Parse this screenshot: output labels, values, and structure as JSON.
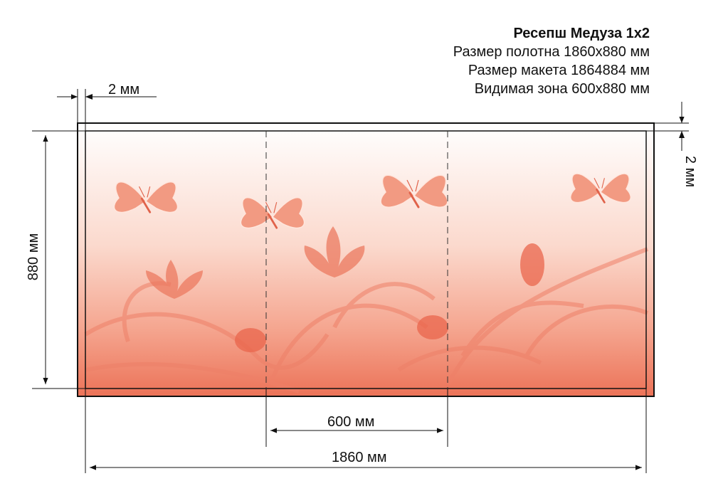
{
  "header": {
    "title": "Ресепш Медуза 1х2",
    "lines": [
      "Размер полотна 1860х880 мм",
      "Размер макета 1864884 мм",
      "Видимая зона 600х880 мм"
    ]
  },
  "dimensions": {
    "bleed_left": "2 мм",
    "bleed_top": "2 мм",
    "height": "880 мм",
    "visible_width": "600 мм",
    "total_width": "1860 мм"
  },
  "colors": {
    "panel_top": "#ffffff",
    "panel_mid": "#f8c8b8",
    "panel_bottom": "#ec7358",
    "accent": "#e85e45"
  },
  "decor_icons": [
    "butterfly-icon",
    "flower-icon",
    "tulip-bud-icon",
    "swirl-icon"
  ]
}
